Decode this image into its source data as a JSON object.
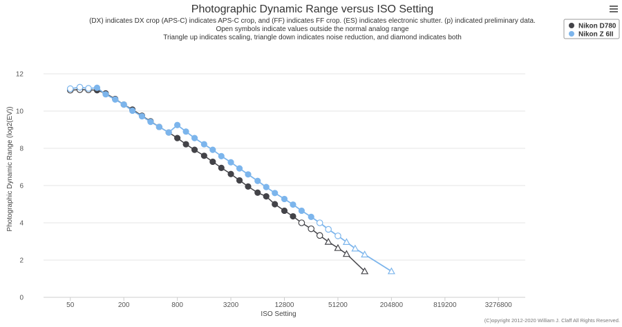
{
  "chart_data": {
    "type": "line",
    "title": "Photographic Dynamic Range versus ISO Setting",
    "subtitle_lines": [
      "(DX) indicates DX crop (APS-C) indicates APS-C crop, and (FF) indicates FF crop. (ES) indicates electronic shutter. (p) indicated preliminary data.",
      "Open symbols indicate values outside the normal analog range",
      "Triangle up indicates scaling, triangle down indicates noise reduction, and diamond indicates both"
    ],
    "xlabel": "ISO Setting",
    "ylabel": "Photographic Dynamic Range (log2(EV))",
    "x_scale": "log2",
    "x_ticks": [
      "50",
      "200",
      "800",
      "3200",
      "12800",
      "51200",
      "204800",
      "819200",
      "3276800"
    ],
    "x_tick_values": [
      50,
      200,
      800,
      3200,
      12800,
      51200,
      204800,
      819200,
      3276800
    ],
    "xlim": [
      25,
      6553600
    ],
    "y_ticks": [
      "0",
      "2",
      "4",
      "6",
      "8",
      "10",
      "12"
    ],
    "y_tick_values": [
      0,
      2,
      4,
      6,
      8,
      10,
      12
    ],
    "ylim": [
      0,
      13
    ],
    "grid": true,
    "legend_position": "top-right",
    "series": [
      {
        "name": "Nikon D780",
        "color": "#434348",
        "points": [
          {
            "x": 50,
            "y": 11.12,
            "marker": "circle-open"
          },
          {
            "x": 64,
            "y": 11.15,
            "marker": "circle-open"
          },
          {
            "x": 80,
            "y": 11.14,
            "marker": "circle-open"
          },
          {
            "x": 100,
            "y": 11.12,
            "marker": "circle"
          },
          {
            "x": 125,
            "y": 10.95,
            "marker": "circle"
          },
          {
            "x": 160,
            "y": 10.65,
            "marker": "circle"
          },
          {
            "x": 200,
            "y": 10.35,
            "marker": "circle"
          },
          {
            "x": 250,
            "y": 10.08,
            "marker": "circle"
          },
          {
            "x": 320,
            "y": 9.75,
            "marker": "circle"
          },
          {
            "x": 400,
            "y": 9.45,
            "marker": "circle"
          },
          {
            "x": 500,
            "y": 9.15,
            "marker": "circle"
          },
          {
            "x": 640,
            "y": 8.85,
            "marker": "circle"
          },
          {
            "x": 800,
            "y": 8.55,
            "marker": "circle"
          },
          {
            "x": 1000,
            "y": 8.22,
            "marker": "circle"
          },
          {
            "x": 1250,
            "y": 7.92,
            "marker": "circle"
          },
          {
            "x": 1600,
            "y": 7.6,
            "marker": "circle"
          },
          {
            "x": 2000,
            "y": 7.28,
            "marker": "circle"
          },
          {
            "x": 2500,
            "y": 6.95,
            "marker": "circle"
          },
          {
            "x": 3200,
            "y": 6.62,
            "marker": "circle"
          },
          {
            "x": 4000,
            "y": 6.28,
            "marker": "circle"
          },
          {
            "x": 5000,
            "y": 5.95,
            "marker": "circle"
          },
          {
            "x": 6400,
            "y": 5.62,
            "marker": "circle"
          },
          {
            "x": 8000,
            "y": 5.42,
            "marker": "circle"
          },
          {
            "x": 10000,
            "y": 5.0,
            "marker": "circle"
          },
          {
            "x": 12800,
            "y": 4.65,
            "marker": "circle"
          },
          {
            "x": 16000,
            "y": 4.35,
            "marker": "circle"
          },
          {
            "x": 20000,
            "y": 4.0,
            "marker": "circle-open"
          },
          {
            "x": 25600,
            "y": 3.68,
            "marker": "circle-open"
          },
          {
            "x": 32000,
            "y": 3.32,
            "marker": "circle-open"
          },
          {
            "x": 40000,
            "y": 2.98,
            "marker": "triangle-up-open"
          },
          {
            "x": 51200,
            "y": 2.65,
            "marker": "triangle-up-open"
          },
          {
            "x": 64000,
            "y": 2.33,
            "marker": "triangle-up-open"
          },
          {
            "x": 102400,
            "y": 1.4,
            "marker": "triangle-up-open"
          }
        ]
      },
      {
        "name": "Nikon Z 6II",
        "color": "#7cb5ec",
        "points": [
          {
            "x": 50,
            "y": 11.2,
            "marker": "circle-open"
          },
          {
            "x": 64,
            "y": 11.28,
            "marker": "circle-open"
          },
          {
            "x": 80,
            "y": 11.22,
            "marker": "circle-open"
          },
          {
            "x": 100,
            "y": 11.25,
            "marker": "circle"
          },
          {
            "x": 125,
            "y": 10.9,
            "marker": "circle"
          },
          {
            "x": 160,
            "y": 10.62,
            "marker": "circle"
          },
          {
            "x": 200,
            "y": 10.35,
            "marker": "circle"
          },
          {
            "x": 250,
            "y": 10.02,
            "marker": "circle"
          },
          {
            "x": 320,
            "y": 9.72,
            "marker": "circle"
          },
          {
            "x": 400,
            "y": 9.42,
            "marker": "circle"
          },
          {
            "x": 500,
            "y": 9.15,
            "marker": "circle"
          },
          {
            "x": 640,
            "y": 8.85,
            "marker": "circle"
          },
          {
            "x": 800,
            "y": 9.25,
            "marker": "circle"
          },
          {
            "x": 1000,
            "y": 8.9,
            "marker": "circle"
          },
          {
            "x": 1250,
            "y": 8.55,
            "marker": "circle"
          },
          {
            "x": 1600,
            "y": 8.22,
            "marker": "circle"
          },
          {
            "x": 2000,
            "y": 7.92,
            "marker": "circle"
          },
          {
            "x": 2500,
            "y": 7.58,
            "marker": "circle"
          },
          {
            "x": 3200,
            "y": 7.25,
            "marker": "circle"
          },
          {
            "x": 4000,
            "y": 6.92,
            "marker": "circle"
          },
          {
            "x": 5000,
            "y": 6.6,
            "marker": "circle"
          },
          {
            "x": 6400,
            "y": 6.25,
            "marker": "circle"
          },
          {
            "x": 8000,
            "y": 5.92,
            "marker": "circle"
          },
          {
            "x": 10000,
            "y": 5.6,
            "marker": "circle"
          },
          {
            "x": 12800,
            "y": 5.28,
            "marker": "circle"
          },
          {
            "x": 16000,
            "y": 4.98,
            "marker": "circle"
          },
          {
            "x": 20000,
            "y": 4.65,
            "marker": "circle"
          },
          {
            "x": 25600,
            "y": 4.32,
            "marker": "circle"
          },
          {
            "x": 32000,
            "y": 4.0,
            "marker": "circle-open"
          },
          {
            "x": 40000,
            "y": 3.65,
            "marker": "circle-open"
          },
          {
            "x": 51200,
            "y": 3.3,
            "marker": "circle-open"
          },
          {
            "x": 64000,
            "y": 2.97,
            "marker": "triangle-up-open"
          },
          {
            "x": 80000,
            "y": 2.62,
            "marker": "triangle-up-open"
          },
          {
            "x": 102400,
            "y": 2.3,
            "marker": "triangle-up-open"
          },
          {
            "x": 204800,
            "y": 1.4,
            "marker": "triangle-up-open"
          }
        ]
      }
    ]
  },
  "legend": {
    "items": [
      {
        "label": "Nikon D780"
      },
      {
        "label": "Nikon Z 6II"
      }
    ]
  },
  "credits": "(C)opyright 2012-2020 William J. Claff All Rights Reserved.",
  "menu_icon": "hamburger-icon"
}
